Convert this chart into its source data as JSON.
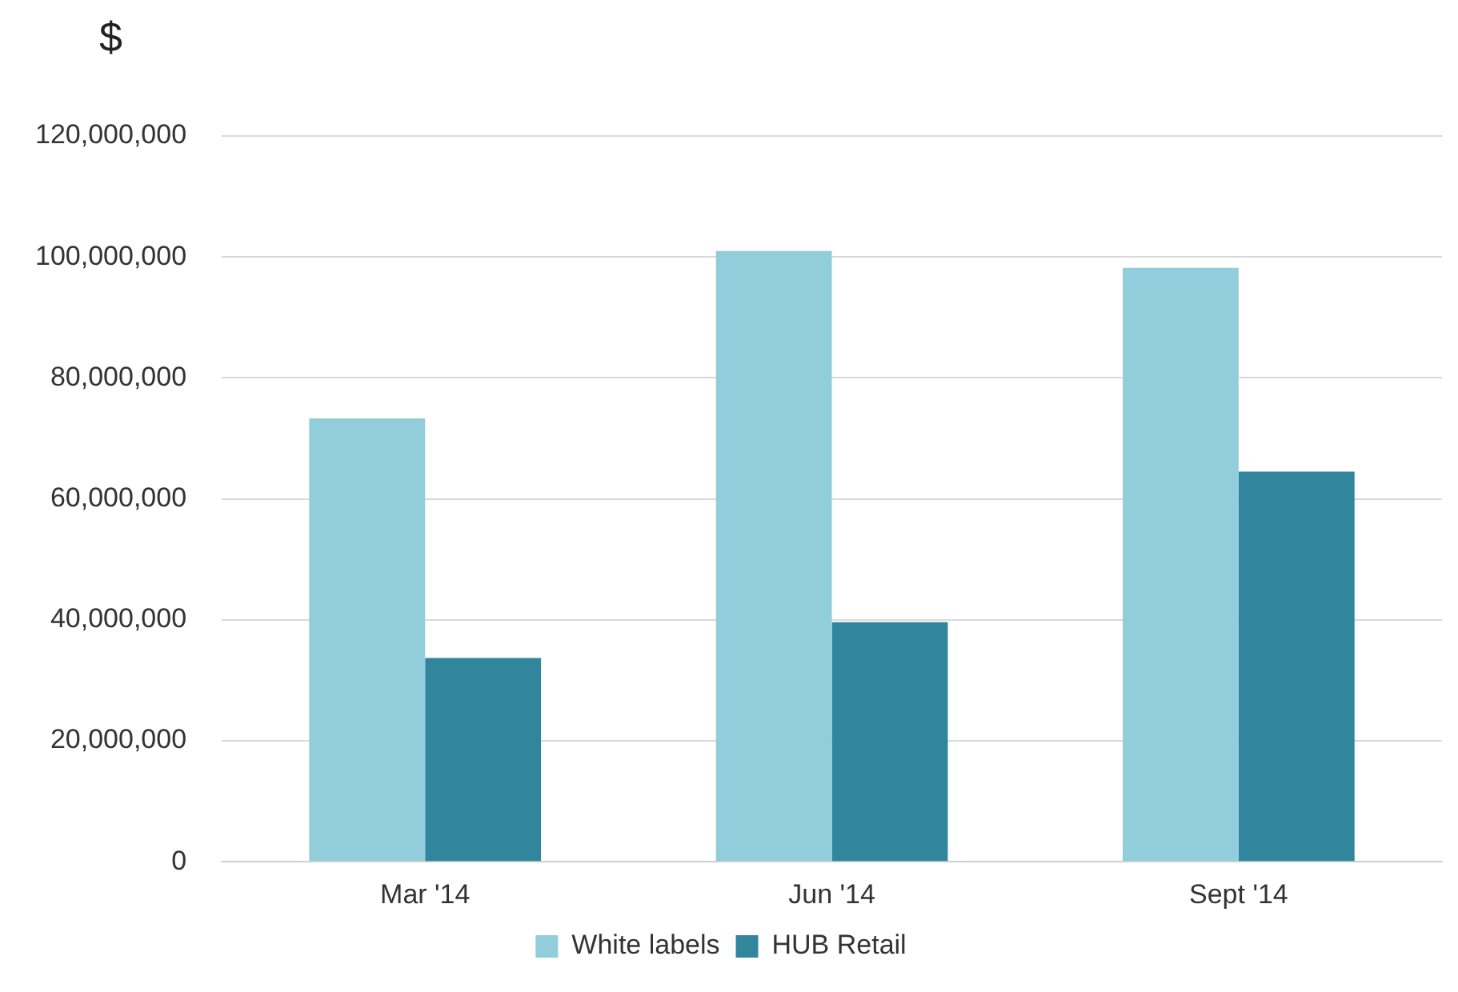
{
  "chart_data": {
    "type": "bar",
    "ylabel": "$",
    "categories": [
      "Mar '14",
      "Jun '14",
      "Sept '14"
    ],
    "series": [
      {
        "name": "White labels",
        "color": "#92cddc",
        "values": [
          73300000,
          101000000,
          98200000
        ]
      },
      {
        "name": "HUB Retail",
        "color": "#31859c",
        "values": [
          33700000,
          39600000,
          64500000
        ]
      }
    ],
    "ylim": [
      0,
      120000000
    ],
    "yticks": [
      0,
      {
        "value": 20000000,
        "label": "20,000,000"
      },
      {
        "value": 40000000,
        "label": "40,000,000"
      },
      {
        "value": 60000000,
        "label": "60,000,000"
      },
      {
        "value": 80000000,
        "label": "80,000,000"
      },
      {
        "value": 100000000,
        "label": "100,000,000"
      },
      {
        "value": 120000000,
        "label": "120,000,000"
      }
    ],
    "grid": "y",
    "legend": "bottom"
  }
}
